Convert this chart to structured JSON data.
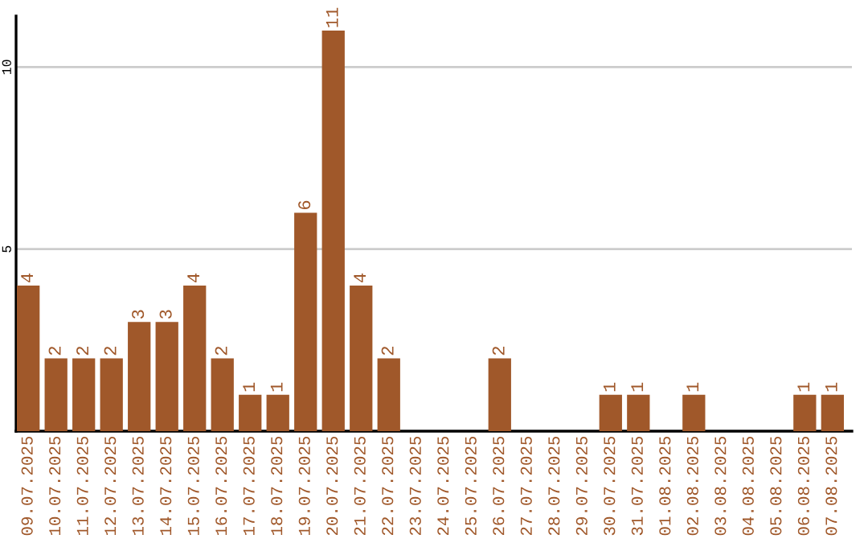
{
  "chart_data": {
    "type": "bar",
    "categories": [
      "09.07.2025",
      "10.07.2025",
      "11.07.2025",
      "12.07.2025",
      "13.07.2025",
      "14.07.2025",
      "15.07.2025",
      "16.07.2025",
      "17.07.2025",
      "18.07.2025",
      "19.07.2025",
      "20.07.2025",
      "21.07.2025",
      "22.07.2025",
      "23.07.2025",
      "24.07.2025",
      "25.07.2025",
      "26.07.2025",
      "27.07.2025",
      "28.07.2025",
      "29.07.2025",
      "30.07.2025",
      "31.07.2025",
      "01.08.2025",
      "02.08.2025",
      "03.08.2025",
      "04.08.2025",
      "05.08.2025",
      "06.08.2025",
      "07.08.2025"
    ],
    "values": [
      4,
      2,
      2,
      2,
      3,
      3,
      4,
      2,
      1,
      1,
      6,
      11,
      4,
      2,
      0,
      0,
      0,
      2,
      0,
      0,
      0,
      1,
      1,
      0,
      1,
      0,
      0,
      0,
      1,
      1
    ],
    "value_labels": [
      "4",
      "2",
      "2",
      "2",
      "3",
      "3",
      "4",
      "2",
      "1",
      "1",
      "6",
      "11",
      "4",
      "2",
      null,
      null,
      null,
      "2",
      null,
      null,
      null,
      "1",
      "1",
      null,
      "1",
      null,
      null,
      null,
      "1",
      "1"
    ],
    "color": "#a0582a",
    "ylim": [
      0,
      11.4
    ],
    "yticks": [
      5,
      10
    ],
    "grid": "y"
  }
}
